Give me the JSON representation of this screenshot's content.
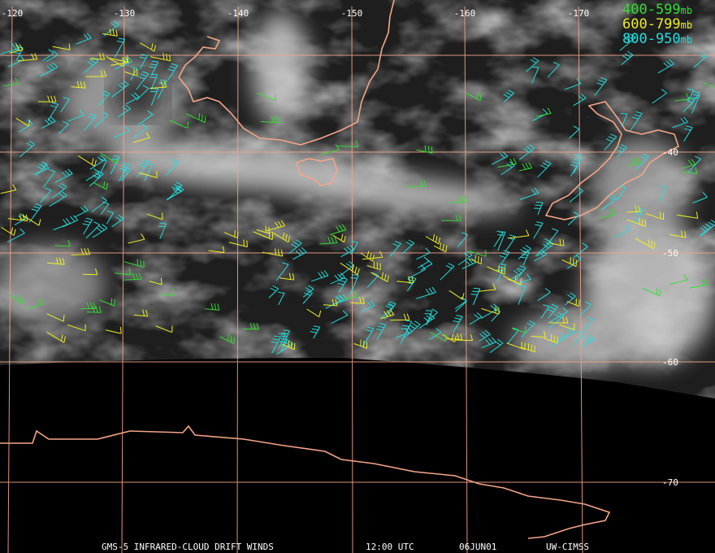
{
  "longitude_labels": [
    "-120",
    "-130",
    "-140",
    "-150",
    "-160",
    "-170"
  ],
  "latitude_labels": [
    "-40",
    "-50",
    "-60",
    "-70"
  ],
  "legend": [
    {
      "range": "400-599",
      "unit": "mb",
      "color": "#33dd33"
    },
    {
      "range": "600-799",
      "unit": "mb",
      "color": "#eeee22"
    },
    {
      "range": "800-950",
      "unit": "mb",
      "color": "#22dddd"
    }
  ],
  "footer": {
    "product": "GMS-5 INFRARED-CLOUD DRIFT WINDS",
    "time": "12:00 UTC",
    "date": "06JUN01",
    "source": "UW-CIMSS"
  }
}
